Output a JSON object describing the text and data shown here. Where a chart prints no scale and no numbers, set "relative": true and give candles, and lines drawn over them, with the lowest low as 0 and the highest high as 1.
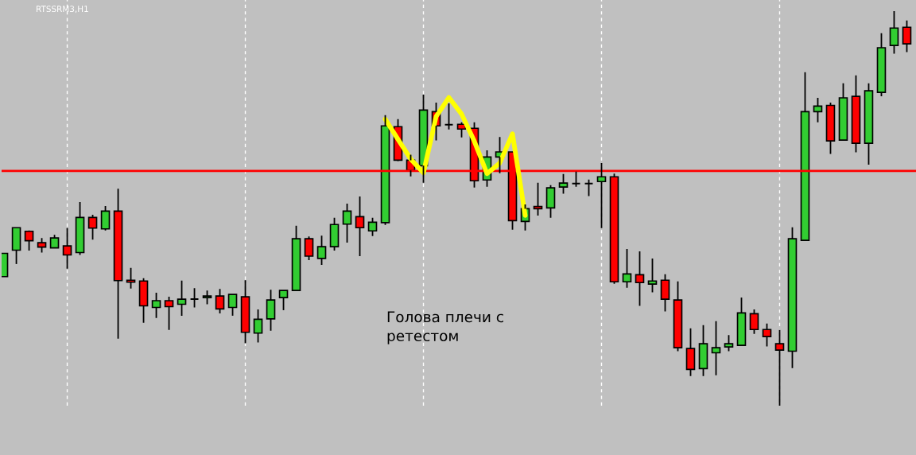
{
  "chart_data": {
    "type": "candlestick",
    "title": "RTSSRM3,H1",
    "relative": true,
    "grid": "x",
    "categories": [
      null,
      null,
      null,
      null,
      null,
      null,
      null,
      null,
      null,
      null,
      null,
      null,
      null,
      null,
      null,
      null,
      null,
      null,
      null,
      null,
      null,
      null,
      null,
      null,
      null,
      null,
      null,
      null,
      null,
      null,
      null,
      null,
      null,
      null,
      null,
      null,
      null,
      null,
      null,
      null,
      null,
      null,
      null,
      null,
      null,
      null,
      null,
      null,
      null,
      null,
      null,
      null,
      null,
      null,
      null,
      null,
      null,
      null,
      null,
      null,
      null,
      null,
      null,
      null,
      null,
      null,
      null,
      null,
      null,
      null,
      null,
      null
    ],
    "ohlc": [
      [
        0.327,
        0.386,
        0.327,
        0.386
      ],
      [
        0.394,
        0.451,
        0.359,
        0.451
      ],
      [
        0.442,
        0.444,
        0.393,
        0.418
      ],
      [
        0.413,
        0.425,
        0.388,
        0.402
      ],
      [
        0.4,
        0.433,
        0.4,
        0.425
      ],
      [
        0.405,
        0.45,
        0.347,
        0.382
      ],
      [
        0.388,
        0.516,
        0.382,
        0.477
      ],
      [
        0.477,
        0.484,
        0.421,
        0.45
      ],
      [
        0.448,
        0.506,
        0.444,
        0.493
      ],
      [
        0.493,
        0.55,
        0.17,
        0.317
      ],
      [
        0.318,
        0.349,
        0.297,
        0.313
      ],
      [
        0.316,
        0.323,
        0.21,
        0.253
      ],
      [
        0.249,
        0.286,
        0.222,
        0.266
      ],
      [
        0.266,
        0.276,
        0.192,
        0.251
      ],
      [
        0.257,
        0.317,
        0.228,
        0.27
      ],
      [
        0.27,
        0.298,
        0.249,
        0.27
      ],
      [
        0.274,
        0.292,
        0.257,
        0.278
      ],
      [
        0.278,
        0.296,
        0.234,
        0.245
      ],
      [
        0.249,
        0.282,
        0.228,
        0.282
      ],
      [
        0.276,
        0.318,
        0.158,
        0.186
      ],
      [
        0.184,
        0.244,
        0.16,
        0.219
      ],
      [
        0.22,
        0.294,
        0.19,
        0.268
      ],
      [
        0.274,
        0.292,
        0.242,
        0.292
      ],
      [
        0.292,
        0.456,
        0.292,
        0.423
      ],
      [
        0.423,
        0.429,
        0.369,
        0.379
      ],
      [
        0.373,
        0.431,
        0.357,
        0.403
      ],
      [
        0.403,
        0.476,
        0.393,
        0.459
      ],
      [
        0.46,
        0.512,
        0.413,
        0.493
      ],
      [
        0.479,
        0.53,
        0.379,
        0.451
      ],
      [
        0.443,
        0.476,
        0.43,
        0.465
      ],
      [
        0.464,
        0.736,
        0.458,
        0.709
      ],
      [
        0.707,
        0.726,
        0.62,
        0.622
      ],
      [
        0.622,
        0.636,
        0.581,
        0.596
      ],
      [
        0.608,
        0.788,
        0.565,
        0.749
      ],
      [
        0.745,
        0.768,
        0.672,
        0.709
      ],
      [
        0.712,
        0.766,
        0.7,
        0.712
      ],
      [
        0.713,
        0.718,
        0.68,
        0.701
      ],
      [
        0.703,
        0.718,
        0.553,
        0.57
      ],
      [
        0.572,
        0.647,
        0.555,
        0.63
      ],
      [
        0.63,
        0.681,
        0.589,
        0.643
      ],
      [
        0.643,
        0.643,
        0.446,
        0.469
      ],
      [
        0.467,
        0.51,
        0.444,
        0.499
      ],
      [
        0.505,
        0.565,
        0.482,
        0.499
      ],
      [
        0.501,
        0.559,
        0.476,
        0.552
      ],
      [
        0.554,
        0.587,
        0.537,
        0.564
      ],
      [
        0.563,
        0.593,
        0.555,
        0.563
      ],
      [
        0.563,
        0.573,
        0.531,
        0.563
      ],
      [
        0.568,
        0.615,
        0.45,
        0.58
      ],
      [
        0.58,
        0.588,
        0.309,
        0.314
      ],
      [
        0.314,
        0.397,
        0.299,
        0.334
      ],
      [
        0.332,
        0.391,
        0.253,
        0.312
      ],
      [
        0.308,
        0.373,
        0.287,
        0.316
      ],
      [
        0.318,
        0.333,
        0.239,
        0.27
      ],
      [
        0.268,
        0.315,
        0.138,
        0.147
      ],
      [
        0.145,
        0.196,
        0.075,
        0.092
      ],
      [
        0.094,
        0.204,
        0.075,
        0.157
      ],
      [
        0.134,
        0.214,
        0.077,
        0.147
      ],
      [
        0.149,
        0.179,
        0.138,
        0.157
      ],
      [
        0.153,
        0.274,
        0.153,
        0.235
      ],
      [
        0.233,
        0.244,
        0.182,
        0.193
      ],
      [
        0.193,
        0.208,
        0.15,
        0.175
      ],
      [
        0.157,
        0.192,
        0.0,
        0.141
      ],
      [
        0.138,
        0.452,
        0.095,
        0.423
      ],
      [
        0.419,
        0.845,
        0.419,
        0.745
      ],
      [
        0.745,
        0.78,
        0.718,
        0.759
      ],
      [
        0.761,
        0.768,
        0.638,
        0.671
      ],
      [
        0.673,
        0.817,
        0.673,
        0.78
      ],
      [
        0.784,
        0.837,
        0.642,
        0.665
      ],
      [
        0.665,
        0.817,
        0.611,
        0.798
      ],
      [
        0.794,
        0.944,
        0.784,
        0.907
      ],
      [
        0.913,
        1.0,
        0.892,
        0.957
      ],
      [
        0.959,
        0.976,
        0.896,
        0.917
      ]
    ],
    "colors": [
      "#32cd32",
      "#32cd32",
      "#ff0000",
      "#ff0000",
      "#32cd32",
      "#ff0000",
      "#32cd32",
      "#ff0000",
      "#32cd32",
      "#ff0000",
      "#ff0000",
      "#ff0000",
      "#32cd32",
      "#ff0000",
      "#32cd32",
      "#000000",
      "#32cd32",
      "#ff0000",
      "#32cd32",
      "#ff0000",
      "#32cd32",
      "#32cd32",
      "#32cd32",
      "#32cd32",
      "#ff0000",
      "#32cd32",
      "#32cd32",
      "#32cd32",
      "#ff0000",
      "#32cd32",
      "#32cd32",
      "#ff0000",
      "#ff0000",
      "#32cd32",
      "#ff0000",
      "#000000",
      "#ff0000",
      "#ff0000",
      "#32cd32",
      "#32cd32",
      "#ff0000",
      "#32cd32",
      "#ff0000",
      "#32cd32",
      "#32cd32",
      "#000000",
      "#000000",
      "#32cd32",
      "#ff0000",
      "#32cd32",
      "#ff0000",
      "#32cd32",
      "#ff0000",
      "#ff0000",
      "#ff0000",
      "#32cd32",
      "#32cd32",
      "#32cd32",
      "#32cd32",
      "#ff0000",
      "#ff0000",
      "#ff0000",
      "#32cd32",
      "#32cd32",
      "#32cd32",
      "#ff0000",
      "#32cd32",
      "#ff0000",
      "#32cd32",
      "#32cd32",
      "#32cd32",
      "#ff0000"
    ],
    "series": [
      {
        "type": "line",
        "color": "#ffff00",
        "values": [
          null,
          null,
          null,
          null,
          null,
          null,
          null,
          null,
          null,
          null,
          null,
          null,
          null,
          null,
          null,
          null,
          null,
          null,
          null,
          null,
          null,
          null,
          null,
          null,
          null,
          null,
          null,
          null,
          null,
          null,
          0.726,
          0.675,
          0.625,
          0.59,
          0.733,
          0.781,
          0.739,
          0.67,
          0.588,
          0.615,
          0.689,
          0.482,
          null,
          null,
          null,
          null,
          null,
          null,
          null,
          null,
          null,
          null,
          null,
          null,
          null,
          null,
          null,
          null,
          null,
          null,
          null,
          null,
          null,
          null,
          null,
          null,
          null,
          null,
          null,
          null,
          null,
          null
        ]
      }
    ],
    "ref_lines": [
      {
        "axis": "y",
        "value": 0.595,
        "color": "#ff0000"
      }
    ],
    "annotations": [
      "Голова плечи с\nретестом"
    ]
  }
}
